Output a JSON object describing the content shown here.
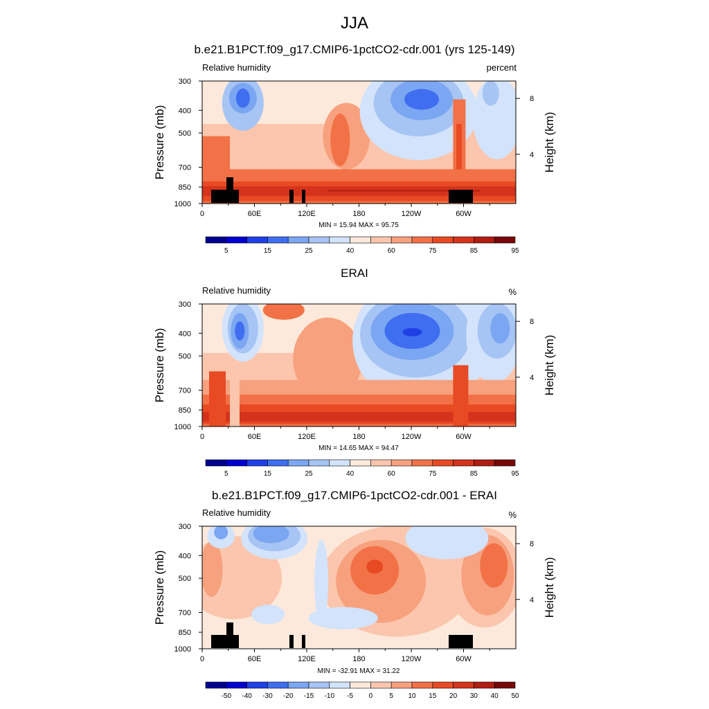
{
  "figure": {
    "season": "JJA"
  },
  "colorbar_colors": [
    "#000090",
    "#0000d0",
    "#1f3fe6",
    "#3f6ef0",
    "#7ba6f2",
    "#a6c4f4",
    "#d2e3fb",
    "#fde9db",
    "#fbc6ad",
    "#f7a17e",
    "#f27147",
    "#e84a24",
    "#d5331b",
    "#b01d13",
    "#780808"
  ],
  "chart_data": [
    {
      "type": "heatmap",
      "title": "b.e21.B1PCT.f09_g17.CMIP6-1pctCO2-cdr.001 (yrs 125-149)",
      "variable_label": "Relative humidity",
      "units_label": "percent",
      "ylabel": "Pressure (mb)",
      "ylabel_right": "Height (km)",
      "xticks": [
        "0",
        "60E",
        "120E",
        "180",
        "120W",
        "60W"
      ],
      "yticks": [
        "300",
        "400",
        "500",
        "700",
        "850",
        "1000"
      ],
      "height_ticks": [
        "8",
        "4"
      ],
      "stats_text": "MIN =  15.94  MAX =  95.75",
      "colorbar_labels": [
        "5",
        "15",
        "25",
        "40",
        "60",
        "75",
        "85",
        "95"
      ],
      "xlim": [
        0,
        360
      ],
      "ylim": [
        1000,
        300
      ],
      "has_topography_mask": true
    },
    {
      "type": "heatmap",
      "title": "ERAI",
      "variable_label": "Relative humidity",
      "units_label": "%",
      "ylabel": "Pressure (mb)",
      "ylabel_right": "Height (km)",
      "xticks": [
        "0",
        "60E",
        "120E",
        "180",
        "120W",
        "60W"
      ],
      "yticks": [
        "300",
        "400",
        "500",
        "700",
        "850",
        "1000"
      ],
      "height_ticks": [
        "8",
        "4"
      ],
      "stats_text": "MIN =  14.65  MAX =  94.47",
      "colorbar_labels": [
        "5",
        "15",
        "25",
        "40",
        "60",
        "75",
        "85",
        "95"
      ],
      "xlim": [
        0,
        360
      ],
      "ylim": [
        1000,
        300
      ],
      "has_topography_mask": false
    },
    {
      "type": "heatmap",
      "title": "b.e21.B1PCT.f09_g17.CMIP6-1pctCO2-cdr.001 - ERAI",
      "variable_label": "Relative humidity",
      "units_label": "%",
      "ylabel": "Pressure (mb)",
      "ylabel_right": "Height (km)",
      "xticks": [
        "0",
        "60E",
        "120E",
        "180",
        "120W",
        "60W"
      ],
      "yticks": [
        "300",
        "400",
        "500",
        "700",
        "850",
        "1000"
      ],
      "height_ticks": [
        "8",
        "4"
      ],
      "stats_text": "MIN = -32.91  MAX =  31.22",
      "colorbar_labels": [
        "-50",
        "-40",
        "-30",
        "-20",
        "-15",
        "-10",
        "-5",
        "0",
        "5",
        "10",
        "15",
        "20",
        "30",
        "40",
        "50"
      ],
      "xlim": [
        0,
        360
      ],
      "ylim": [
        1000,
        300
      ],
      "has_topography_mask": true
    }
  ]
}
